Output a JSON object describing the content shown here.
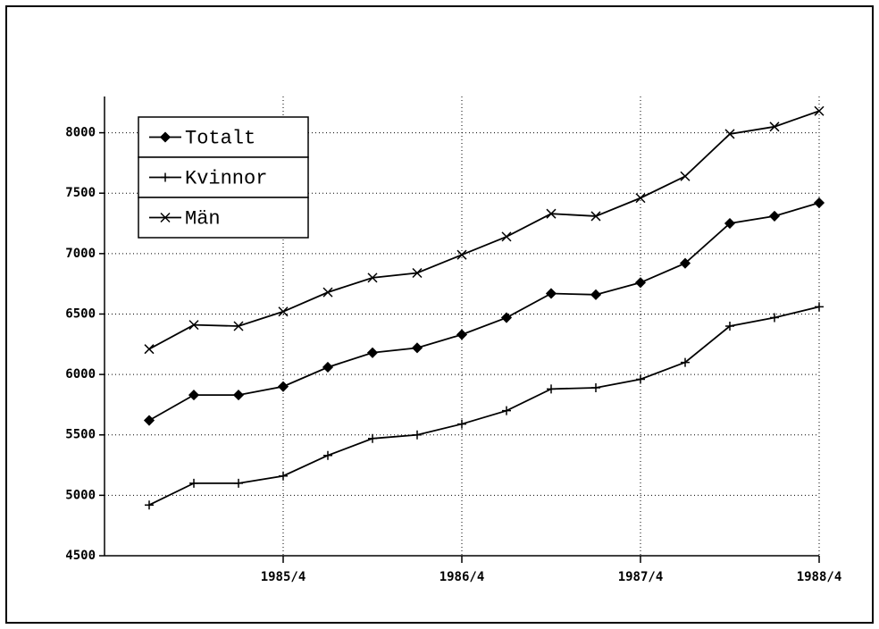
{
  "chart_data": {
    "type": "line",
    "categories": [
      null,
      null,
      null,
      "1985/4",
      null,
      null,
      null,
      "1986/4",
      null,
      null,
      null,
      "1987/4",
      null,
      null,
      null,
      "1988/4"
    ],
    "series": [
      {
        "name": "Totalt",
        "color": "#000000",
        "marker": "diamond",
        "values": [
          5620,
          5830,
          5830,
          5900,
          6060,
          6180,
          6220,
          6330,
          6470,
          6670,
          6660,
          6760,
          6920,
          7250,
          7310,
          7420
        ]
      },
      {
        "name": "Kvinnor",
        "color": "#000000",
        "marker": "plus",
        "values": [
          4920,
          5100,
          5100,
          5160,
          5330,
          5470,
          5500,
          5590,
          5700,
          5880,
          5890,
          5960,
          6100,
          6400,
          6470,
          6560
        ]
      },
      {
        "name": "Män",
        "color": "#000000",
        "marker": "x",
        "values": [
          6210,
          6410,
          6400,
          6520,
          6680,
          6800,
          6840,
          6990,
          7140,
          7330,
          7310,
          7460,
          7640,
          7990,
          8050,
          8180
        ]
      }
    ],
    "ylim": [
      4500,
      8300
    ],
    "yticks": [
      4500,
      5000,
      5500,
      6000,
      6500,
      7000,
      7500,
      8000
    ],
    "grid": true,
    "legend": "upper left"
  }
}
